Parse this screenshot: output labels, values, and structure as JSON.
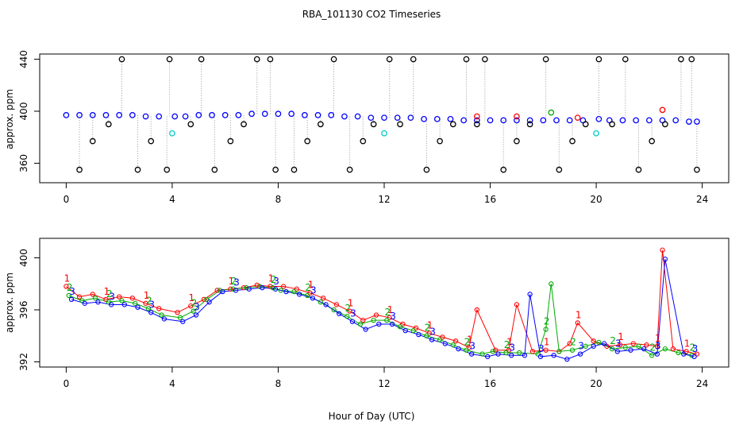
{
  "title": "RBA_101130  CO2 Timeseries",
  "xlabel": "Hour of Day (UTC)",
  "chart_data": [
    {
      "type": "scatter",
      "name": "top-panel",
      "ylabel": "approx. ppm",
      "xlim": [
        -1,
        25
      ],
      "ylim": [
        345,
        444
      ],
      "xticks": [
        0,
        4,
        8,
        12,
        16,
        20,
        24
      ],
      "yticks": [
        360,
        400,
        440
      ],
      "series": [
        {
          "name": "main",
          "color": "#0000ff",
          "x": [
            0.0,
            0.5,
            1.0,
            1.5,
            2.0,
            2.5,
            3.0,
            3.5,
            4.1,
            4.5,
            5.0,
            5.5,
            6.0,
            6.5,
            7.0,
            7.5,
            8.0,
            8.5,
            9.0,
            9.5,
            10.0,
            10.5,
            11.0,
            11.5,
            12.0,
            12.5,
            13.0,
            13.5,
            14.0,
            14.5,
            15.0,
            15.5,
            16.0,
            16.5,
            17.0,
            17.5,
            18.0,
            18.5,
            19.0,
            19.5,
            20.1,
            20.5,
            21.0,
            21.5,
            22.0,
            22.5,
            23.0,
            23.5,
            23.8
          ],
          "y": [
            397,
            397,
            397,
            397,
            397,
            397,
            396,
            396,
            396,
            396,
            397,
            397,
            397,
            397,
            398,
            398,
            398,
            398,
            397,
            397,
            397,
            396,
            396,
            395,
            395,
            395,
            395,
            394,
            394,
            394,
            393,
            393,
            393,
            393,
            393,
            393,
            393,
            393,
            393,
            393,
            394,
            393,
            393,
            393,
            393,
            393,
            393,
            392,
            392
          ]
        },
        {
          "name": "outliers",
          "color": "#000000",
          "x": [
            0.5,
            1.0,
            1.6,
            2.1,
            2.7,
            3.2,
            3.8,
            3.9,
            4.7,
            5.1,
            5.6,
            6.2,
            6.7,
            7.2,
            7.7,
            7.9,
            8.6,
            9.1,
            9.6,
            10.1,
            10.7,
            11.2,
            11.6,
            12.2,
            12.6,
            13.1,
            13.6,
            14.1,
            14.6,
            15.1,
            15.5,
            15.8,
            16.5,
            17.0,
            17.5,
            18.1,
            18.6,
            19.1,
            19.6,
            20.1,
            20.6,
            21.1,
            21.6,
            22.1,
            22.6,
            23.2,
            23.6,
            23.8
          ],
          "y": [
            355,
            377,
            390,
            440,
            355,
            377,
            355,
            440,
            390,
            440,
            355,
            377,
            390,
            440,
            440,
            355,
            355,
            377,
            390,
            440,
            355,
            377,
            390,
            440,
            390,
            440,
            355,
            377,
            390,
            440,
            390,
            440,
            355,
            377,
            390,
            440,
            355,
            377,
            390,
            440,
            390,
            440,
            355,
            377,
            390,
            440,
            440,
            355
          ]
        },
        {
          "name": "cyan",
          "color": "#00cccc",
          "x": [
            4.0,
            12.0,
            20.0
          ],
          "y": [
            383,
            383,
            383
          ]
        },
        {
          "name": "red",
          "color": "#ff0000",
          "x": [
            15.5,
            17.0,
            19.3,
            22.5
          ],
          "y": [
            396,
            396,
            395,
            401
          ]
        },
        {
          "name": "green",
          "color": "#00aa00",
          "x": [
            18.3
          ],
          "y": [
            399
          ]
        }
      ]
    },
    {
      "type": "scatter",
      "name": "bottom-panel",
      "ylabel": "approx. ppm",
      "xlim": [
        -1,
        25
      ],
      "ylim": [
        391.6,
        401.5
      ],
      "xticks": [
        0,
        4,
        8,
        12,
        16,
        20,
        24
      ],
      "yticks": [
        392,
        396,
        400
      ],
      "series": [
        {
          "name": "1",
          "color": "#ff0000",
          "x": [
            0,
            0.5,
            1,
            1.5,
            2,
            2.5,
            3,
            3.5,
            4.2,
            4.7,
            5.2,
            5.7,
            6.2,
            6.7,
            7.2,
            7.7,
            8.2,
            8.7,
            9.2,
            9.7,
            10.2,
            10.7,
            11.2,
            11.7,
            12.2,
            12.7,
            13.2,
            13.7,
            14.2,
            14.7,
            15.2,
            15.5,
            16.2,
            16.7,
            17.0,
            17.6,
            18.1,
            18.6,
            19.0,
            19.3,
            19.9,
            20.4,
            20.9,
            21.4,
            21.9,
            22.3,
            22.5,
            22.9,
            23.4,
            23.8
          ],
          "y": [
            397.8,
            397.0,
            397.2,
            396.8,
            397.0,
            396.9,
            396.5,
            396.1,
            395.8,
            396.3,
            396.8,
            397.5,
            397.6,
            397.7,
            397.9,
            397.8,
            397.8,
            397.6,
            397.3,
            396.9,
            396.4,
            395.9,
            395.2,
            395.6,
            395.4,
            394.9,
            394.6,
            394.2,
            393.9,
            393.6,
            393.1,
            396.0,
            392.9,
            392.9,
            396.4,
            392.8,
            392.9,
            392.8,
            393.4,
            395.0,
            393.6,
            393.2,
            393.3,
            393.4,
            393.3,
            393.2,
            400.6,
            393.0,
            392.8,
            392.6
          ]
        },
        {
          "name": "2",
          "color": "#00aa00",
          "x": [
            0.1,
            0.6,
            1.1,
            1.6,
            2.1,
            2.6,
            3.1,
            3.6,
            4.3,
            4.8,
            5.3,
            5.8,
            6.3,
            6.8,
            7.3,
            7.8,
            8.1,
            8.6,
            9.1,
            9.6,
            10.1,
            10.6,
            11.1,
            11.6,
            12.1,
            12.6,
            13.1,
            13.6,
            14.1,
            14.6,
            15.1,
            15.7,
            16.1,
            16.6,
            17.1,
            17.8,
            18.1,
            18.3,
            18.6,
            19.1,
            19.6,
            20.1,
            20.6,
            21.1,
            21.6,
            22.1,
            22.6,
            23.1,
            23.6
          ],
          "y": [
            397.1,
            396.7,
            396.9,
            396.6,
            396.7,
            396.5,
            396.1,
            395.6,
            395.4,
            395.9,
            396.8,
            397.5,
            397.6,
            397.7,
            397.8,
            397.7,
            397.5,
            397.4,
            397.1,
            396.6,
            396.0,
            395.5,
            394.9,
            395.2,
            395.2,
            394.7,
            394.4,
            394.0,
            393.7,
            393.3,
            392.9,
            392.6,
            392.8,
            392.7,
            392.7,
            392.6,
            394.5,
            398.0,
            392.8,
            392.9,
            393.2,
            393.5,
            393.0,
            393.1,
            393.2,
            392.5,
            393.0,
            392.7,
            392.5
          ]
        },
        {
          "name": "3",
          "color": "#0000ff",
          "x": [
            0.2,
            0.7,
            1.2,
            1.7,
            2.2,
            2.7,
            3.2,
            3.7,
            4.4,
            4.9,
            5.4,
            5.9,
            6.4,
            6.9,
            7.4,
            7.9,
            8.3,
            8.8,
            9.3,
            9.8,
            10.3,
            10.8,
            11.3,
            11.8,
            12.3,
            12.8,
            13.3,
            13.8,
            14.3,
            14.8,
            15.3,
            15.9,
            16.3,
            16.8,
            17.3,
            17.5,
            17.9,
            18.4,
            18.9,
            19.4,
            19.9,
            20.3,
            20.8,
            21.3,
            21.8,
            22.3,
            22.6,
            23.3,
            23.7
          ],
          "y": [
            396.8,
            396.5,
            396.6,
            396.4,
            396.4,
            396.2,
            395.8,
            395.3,
            395.1,
            395.6,
            396.6,
            397.4,
            397.5,
            397.6,
            397.7,
            397.6,
            397.4,
            397.2,
            396.9,
            396.4,
            395.7,
            395.1,
            394.5,
            394.9,
            394.9,
            394.4,
            394.1,
            393.7,
            393.4,
            393.0,
            392.6,
            392.4,
            392.6,
            392.5,
            392.5,
            397.2,
            392.4,
            392.5,
            392.2,
            392.6,
            393.2,
            393.4,
            392.8,
            392.9,
            393.0,
            392.6,
            399.9,
            392.6,
            392.4
          ]
        }
      ]
    }
  ]
}
